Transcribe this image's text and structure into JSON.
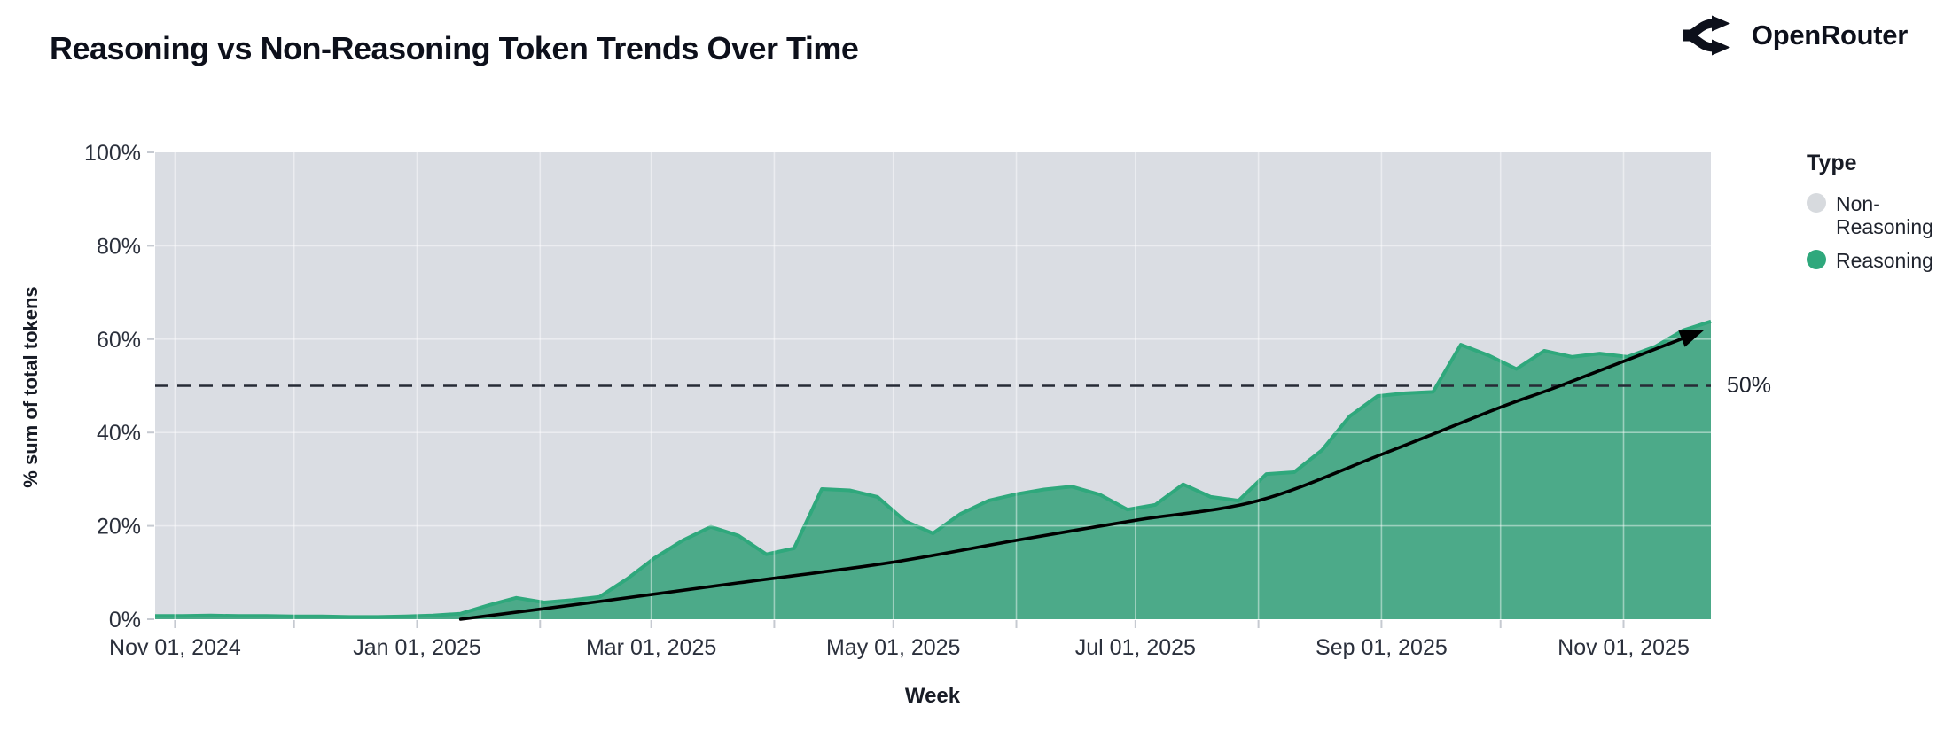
{
  "header": {
    "title": "Reasoning vs Non-Reasoning Token Trends Over Time",
    "brand": "OpenRouter"
  },
  "legend": {
    "title": "Type",
    "items": [
      {
        "label": "Non-Reasoning",
        "color": "#d7dade"
      },
      {
        "label": "Reasoning",
        "color": "#2fa87c"
      }
    ]
  },
  "chart_data": {
    "type": "area",
    "stacked_percent": true,
    "title": "Reasoning vs Non-Reasoning Token Trends Over Time",
    "xlabel": "Week",
    "ylabel": "% sum of total tokens",
    "ylim": [
      0,
      100
    ],
    "grid": true,
    "legend_position": "right",
    "colors": {
      "reasoning_fill": "#4caa89",
      "reasoning_line": "#2fa87c",
      "non_reasoning": "#dadde3",
      "trend": "#000000",
      "gridline": "#ffffff",
      "tick": "#c6cad1",
      "label": "#2b303c"
    },
    "y_ticks": [
      {
        "value": 0,
        "label": "0%"
      },
      {
        "value": 20,
        "label": "20%"
      },
      {
        "value": 40,
        "label": "40%"
      },
      {
        "value": 60,
        "label": "60%"
      },
      {
        "value": 80,
        "label": "80%"
      },
      {
        "value": 100,
        "label": "100%"
      }
    ],
    "x_ticks": [
      {
        "date": "2024-11-01",
        "label": "Nov 01, 2024"
      },
      {
        "date": "2025-01-01",
        "label": "Jan 01, 2025"
      },
      {
        "date": "2025-03-01",
        "label": "Mar 01, 2025"
      },
      {
        "date": "2025-05-01",
        "label": "May 01, 2025"
      },
      {
        "date": "2025-07-01",
        "label": "Jul 01, 2025"
      },
      {
        "date": "2025-09-01",
        "label": "Sep 01, 2025"
      },
      {
        "date": "2025-11-01",
        "label": "Nov 01, 2025"
      }
    ],
    "month_ticks": [
      "2024-11-01",
      "2024-12-01",
      "2025-01-01",
      "2025-02-01",
      "2025-03-01",
      "2025-04-01",
      "2025-05-01",
      "2025-06-01",
      "2025-07-01",
      "2025-08-01",
      "2025-09-01",
      "2025-10-01",
      "2025-11-01"
    ],
    "weeks": [
      "2024-10-27",
      "2024-11-03",
      "2024-11-10",
      "2024-11-17",
      "2024-11-24",
      "2024-12-01",
      "2024-12-08",
      "2024-12-15",
      "2024-12-22",
      "2024-12-29",
      "2025-01-05",
      "2025-01-12",
      "2025-01-19",
      "2025-01-26",
      "2025-02-02",
      "2025-02-09",
      "2025-02-16",
      "2025-02-23",
      "2025-03-02",
      "2025-03-09",
      "2025-03-16",
      "2025-03-23",
      "2025-03-30",
      "2025-04-06",
      "2025-04-13",
      "2025-04-20",
      "2025-04-27",
      "2025-05-04",
      "2025-05-11",
      "2025-05-18",
      "2025-05-25",
      "2025-06-01",
      "2025-06-08",
      "2025-06-15",
      "2025-06-22",
      "2025-06-29",
      "2025-07-06",
      "2025-07-13",
      "2025-07-20",
      "2025-07-27",
      "2025-08-03",
      "2025-08-10",
      "2025-08-17",
      "2025-08-24",
      "2025-08-31",
      "2025-09-07",
      "2025-09-14",
      "2025-09-21",
      "2025-09-28",
      "2025-10-05",
      "2025-10-12",
      "2025-10-19",
      "2025-10-26",
      "2025-11-02",
      "2025-11-09",
      "2025-11-16",
      "2025-11-23"
    ],
    "series": [
      {
        "name": "Non-Reasoning",
        "color": "#dadde3",
        "values": [
          99.3,
          99.3,
          99.2,
          99.3,
          99.3,
          99.4,
          99.4,
          99.5,
          99.5,
          99.4,
          99.2,
          98.8,
          97.0,
          95.4,
          96.4,
          95.9,
          95.2,
          91.3,
          86.8,
          83.1,
          80.2,
          82.1,
          86.1,
          84.8,
          72.1,
          72.4,
          73.8,
          79.0,
          81.6,
          77.4,
          74.6,
          73.2,
          72.2,
          71.6,
          73.3,
          76.5,
          75.5,
          71.1,
          73.8,
          74.6,
          68.9,
          68.5,
          63.8,
          56.5,
          52.2,
          51.6,
          51.3,
          41.2,
          43.5,
          46.4,
          42.5,
          43.8,
          43.1,
          43.8,
          41.6,
          38.1,
          36.2
        ]
      },
      {
        "name": "Reasoning",
        "color": "#4caa89",
        "values": [
          0.7,
          0.7,
          0.8,
          0.7,
          0.7,
          0.6,
          0.6,
          0.5,
          0.5,
          0.6,
          0.8,
          1.2,
          3.0,
          4.6,
          3.6,
          4.1,
          4.8,
          8.7,
          13.2,
          16.9,
          19.8,
          17.9,
          13.9,
          15.2,
          27.9,
          27.6,
          26.2,
          21.0,
          18.4,
          22.6,
          25.4,
          26.8,
          27.8,
          28.4,
          26.7,
          23.5,
          24.5,
          28.9,
          26.2,
          25.4,
          31.1,
          31.5,
          36.2,
          43.5,
          47.8,
          48.4,
          48.7,
          58.8,
          56.5,
          53.6,
          57.5,
          56.2,
          56.9,
          56.2,
          58.4,
          61.9,
          63.8
        ]
      }
    ],
    "reference_line": {
      "value": 50,
      "label": "50%"
    },
    "trend": {
      "name": "reasoning-growth-trend-arrow",
      "points": [
        [
          "2025-01-12",
          0
        ],
        [
          "2025-02-15",
          3.7
        ],
        [
          "2025-03-23",
          7.8
        ],
        [
          "2025-04-30",
          12.1
        ],
        [
          "2025-06-01",
          16.9
        ],
        [
          "2025-07-01",
          21.2
        ],
        [
          "2025-08-01",
          25.4
        ],
        [
          "2025-09-01",
          35.3
        ],
        [
          "2025-10-01",
          45.4
        ],
        [
          "2025-10-16",
          50.0
        ],
        [
          "2025-11-20",
          61.5
        ]
      ]
    }
  }
}
